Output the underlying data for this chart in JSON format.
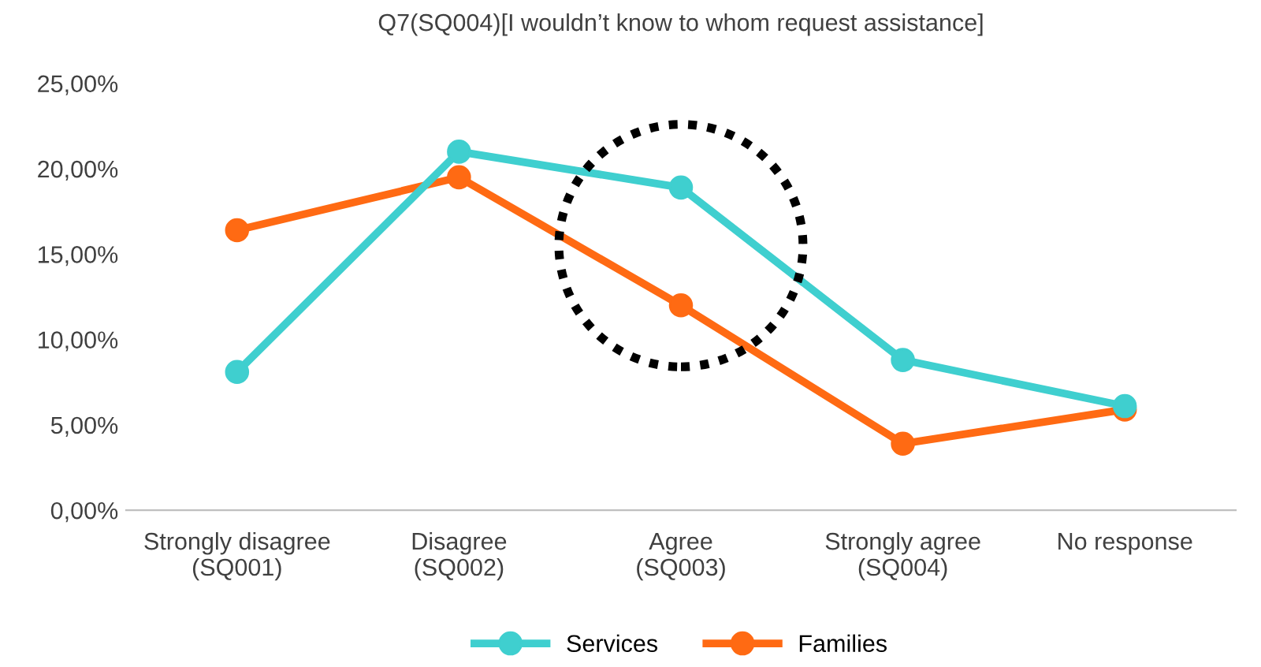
{
  "chart_data": {
    "type": "line",
    "title": "Q7(SQ004)[I wouldn’t know to whom request assistance]",
    "categories": [
      "Strongly disagree\n(SQ001)",
      "Disagree\n(SQ002)",
      "Agree\n(SQ003)",
      "Strongly agree\n(SQ004)",
      "No response"
    ],
    "series": [
      {
        "name": "Services",
        "color": "#3fcfcf",
        "values": [
          8.1,
          21.0,
          18.9,
          8.8,
          6.1
        ]
      },
      {
        "name": "Families",
        "color": "#ff6a13",
        "values": [
          16.4,
          19.5,
          12.0,
          3.9,
          5.9
        ]
      }
    ],
    "ylim": [
      0,
      25
    ],
    "yticks": [
      {
        "value": 0,
        "label": "0,00%"
      },
      {
        "value": 5,
        "label": "5,00%"
      },
      {
        "value": 10,
        "label": "10,00%"
      },
      {
        "value": 15,
        "label": "15,00%"
      },
      {
        "value": 20,
        "label": "20,00%"
      },
      {
        "value": 25,
        "label": "25,00%"
      }
    ],
    "grid": false,
    "legend": "bottom",
    "marker": "circle",
    "line_style": "solid"
  }
}
